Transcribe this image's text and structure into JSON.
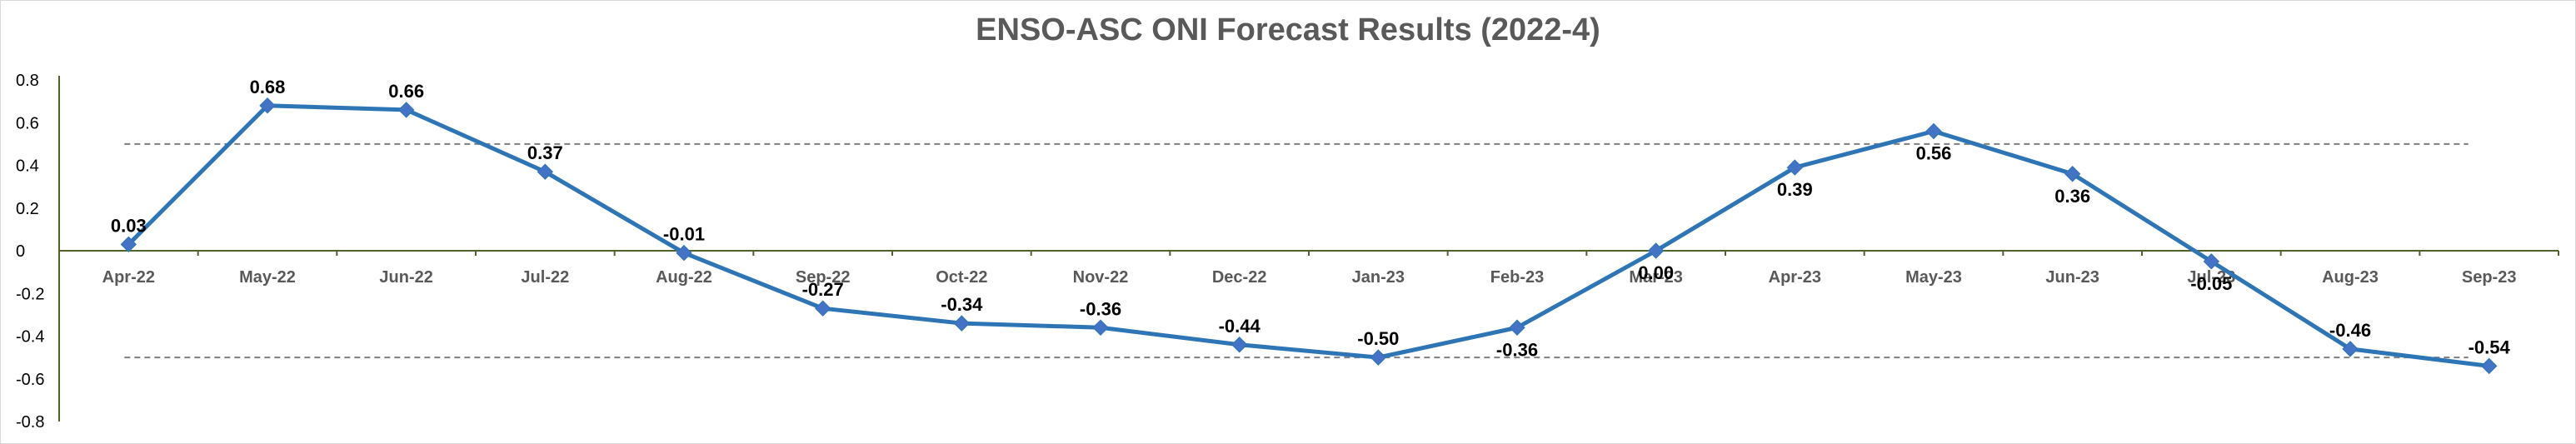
{
  "chart_data": {
    "type": "line",
    "title": "ENSO-ASC ONI Forecast Results (2022-4)",
    "xlabel": "",
    "ylabel": "",
    "categories": [
      "Apr-22",
      "May-22",
      "Jun-22",
      "Jul-22",
      "Aug-22",
      "Sep-22",
      "Oct-22",
      "Nov-22",
      "Dec-22",
      "Jan-23",
      "Feb-23",
      "Mar-23",
      "Apr-23",
      "May-23",
      "Jun-23",
      "Jul-23",
      "Aug-23",
      "Sep-23"
    ],
    "series": [
      {
        "values": [
          0.03,
          0.68,
          0.66,
          0.37,
          -0.01,
          -0.27,
          -0.34,
          -0.36,
          -0.44,
          -0.5,
          -0.36,
          0.0,
          0.39,
          0.56,
          0.36,
          -0.05,
          -0.46,
          -0.54
        ],
        "labels": [
          "0.03",
          "0.68",
          "0.66",
          "0.37",
          "-0.01",
          "-0.27",
          "-0.34",
          "-0.36",
          "-0.44",
          "-0.50",
          "-0.36",
          "0.00",
          "0.39",
          "0.56",
          "0.36",
          "-0.05",
          "-0.46",
          "-0.54"
        ],
        "label_position": [
          "above",
          "above",
          "above",
          "above",
          "above",
          "above",
          "above",
          "above",
          "above",
          "above",
          "below",
          "below",
          "below",
          "below",
          "below",
          "below",
          "above",
          "above"
        ],
        "color": "#2E75B6"
      }
    ],
    "ylim": [
      -0.8,
      0.8
    ],
    "yticks": [
      "0.8",
      "0.6",
      "0.4",
      "0.2",
      "0",
      "-0.2",
      "-0.4",
      "-0.6",
      "-0.8"
    ],
    "reference_lines": [
      0.5,
      -0.5
    ],
    "reference_line_color": "#7f7f7f",
    "axis_color": "#4f6228",
    "grid": false,
    "legend": "none"
  }
}
